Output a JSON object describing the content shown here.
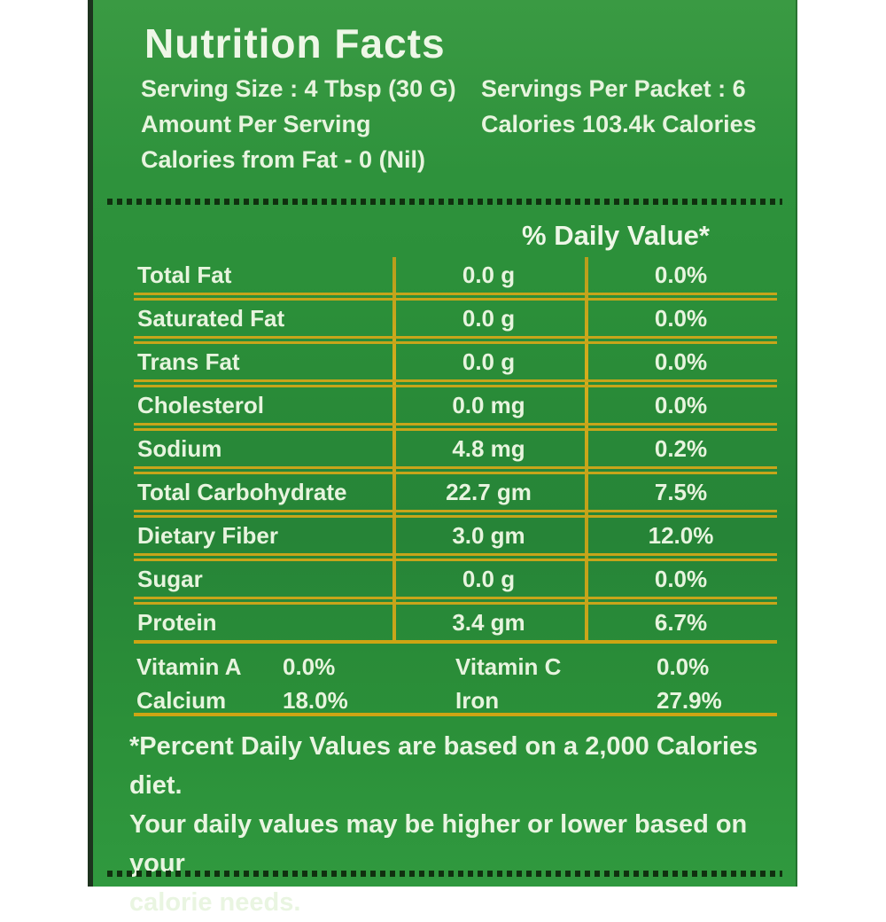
{
  "label": {
    "title": "Nutrition Facts",
    "header_left": {
      "serving_size": "Serving Size : 4 Tbsp (30 G)",
      "amount_per_serving": "Amount Per Serving",
      "calories_from_fat": "Calories from Fat - 0 (Nil)"
    },
    "header_right": {
      "servings_per_packet": "Servings Per Packet : 6",
      "calories": "Calories 103.4k Calories"
    },
    "daily_value_heading": "% Daily Value*",
    "table": {
      "rows": [
        {
          "name": "Total Fat",
          "amount": "0.0 g",
          "dv": "0.0%"
        },
        {
          "name": "Saturated Fat",
          "amount": "0.0 g",
          "dv": "0.0%"
        },
        {
          "name": "Trans Fat",
          "amount": "0.0 g",
          "dv": "0.0%"
        },
        {
          "name": "Cholesterol",
          "amount": "0.0 mg",
          "dv": "0.0%"
        },
        {
          "name": "Sodium",
          "amount": "4.8 mg",
          "dv": "0.2%"
        },
        {
          "name": "Total Carbohydrate",
          "amount": "22.7 gm",
          "dv": "7.5%"
        },
        {
          "name": "Dietary Fiber",
          "amount": "3.0 gm",
          "dv": "12.0%"
        },
        {
          "name": "Sugar",
          "amount": "0.0 g",
          "dv": "0.0%"
        },
        {
          "name": "Protein",
          "amount": "3.4 gm",
          "dv": "6.7%"
        }
      ]
    },
    "micronutrients": [
      {
        "name": "Vitamin A",
        "value": "0.0%"
      },
      {
        "name": "Vitamin C",
        "value": "0.0%"
      },
      {
        "name": "Calcium",
        "value": "18.0%"
      },
      {
        "name": "Iron",
        "value": "27.9%"
      }
    ],
    "footnote_lines": [
      "*Percent Daily Values are based on a 2,000 Calories diet.",
      "Your daily values may be higher or lower based on your",
      "calorie needs."
    ],
    "colors": {
      "label_green": "#2b8f39",
      "line_gold": "#c7a51a",
      "text": "#e7f4de",
      "dash_dark": "#10300f",
      "page_background": "#ffffff"
    }
  }
}
